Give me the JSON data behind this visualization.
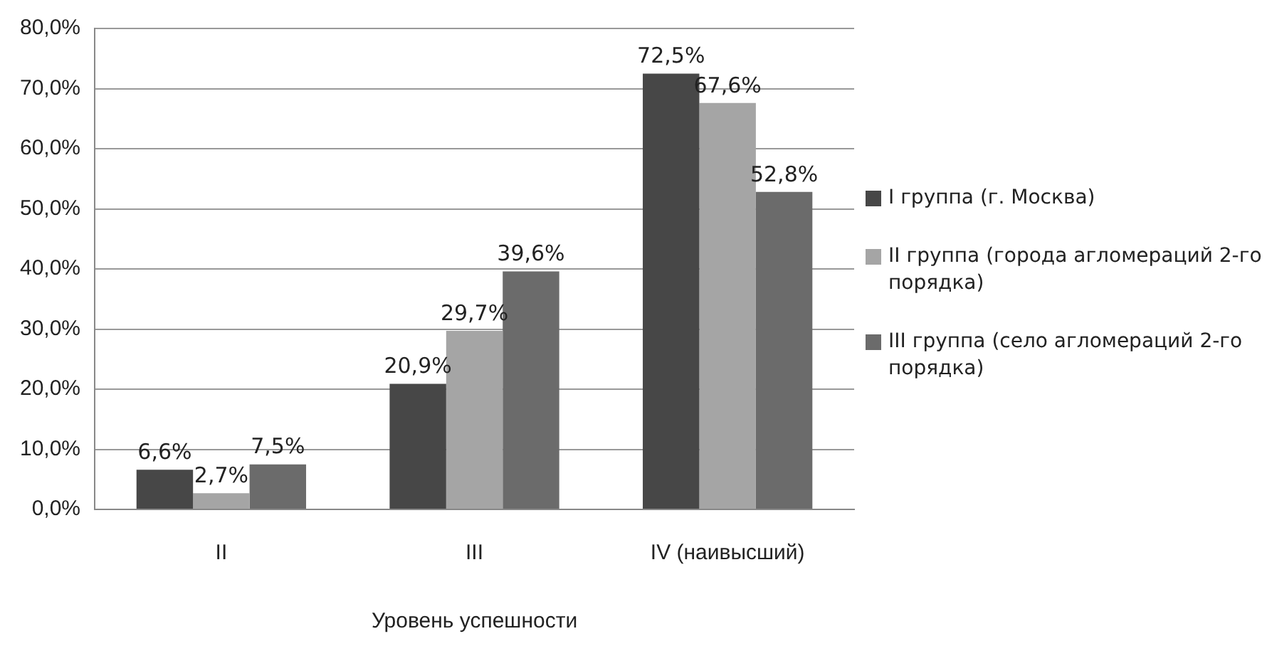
{
  "chart_data": {
    "type": "bar",
    "xlabel": "Уровень успешности",
    "categories": [
      "II",
      "III",
      "IV (наивысший)"
    ],
    "series": [
      {
        "name": "I группа (г. Москва)",
        "color": "#474747",
        "values": [
          6.6,
          20.9,
          72.5
        ],
        "value_labels": [
          "6,6%",
          "20,9%",
          "72,5%"
        ]
      },
      {
        "name": "II группа (города агломераций 2-го порядка)",
        "color": "#a5a5a5",
        "values": [
          2.7,
          29.7,
          67.6
        ],
        "value_labels": [
          "2,7%",
          "29,7%",
          "67,6%"
        ]
      },
      {
        "name": "III группа (село агломераций 2-го порядка)",
        "color": "#6b6b6b",
        "values": [
          7.5,
          39.6,
          52.8
        ],
        "value_labels": [
          "7,5%",
          "39,6%",
          "52,8%"
        ]
      }
    ],
    "ylim": [
      0,
      80
    ],
    "yticks": [
      {
        "value": 0,
        "label": "0,0%"
      },
      {
        "value": 10,
        "label": "10,0%"
      },
      {
        "value": 20,
        "label": "20,0%"
      },
      {
        "value": 30,
        "label": "30,0%"
      },
      {
        "value": 40,
        "label": "40,0%"
      },
      {
        "value": 50,
        "label": "50,0%"
      },
      {
        "value": 60,
        "label": "60,0%"
      },
      {
        "value": 70,
        "label": "70,0%"
      },
      {
        "value": 80,
        "label": "80,0%"
      }
    ],
    "grid": "y",
    "legend": "right"
  }
}
